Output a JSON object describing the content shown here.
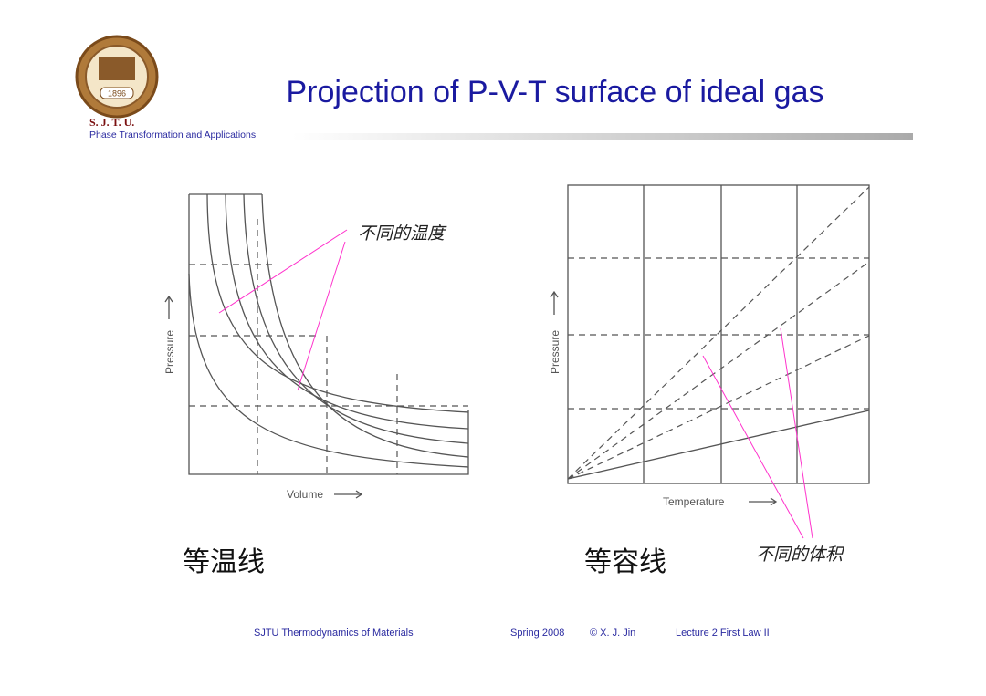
{
  "header": {
    "title": "Projection of P-V-T surface of ideal gas",
    "logo_year": "1896",
    "school": "S. J. T. U.",
    "subtitle": "Phase Transformation and Applications"
  },
  "diagrams": [
    {
      "y_label": "Pressure",
      "x_label": "Volume",
      "annotation": "不同的温度",
      "caption": "等温线"
    },
    {
      "y_label": "Pressure",
      "x_label": "Temperature",
      "annotation": "不同的体积",
      "caption": "等容线"
    }
  ],
  "footer": {
    "course": "SJTU Thermodynamics of Materials",
    "term": "Spring 2008",
    "author": "© X. J. Jin",
    "lecture": "Lecture 2 First Law II"
  }
}
